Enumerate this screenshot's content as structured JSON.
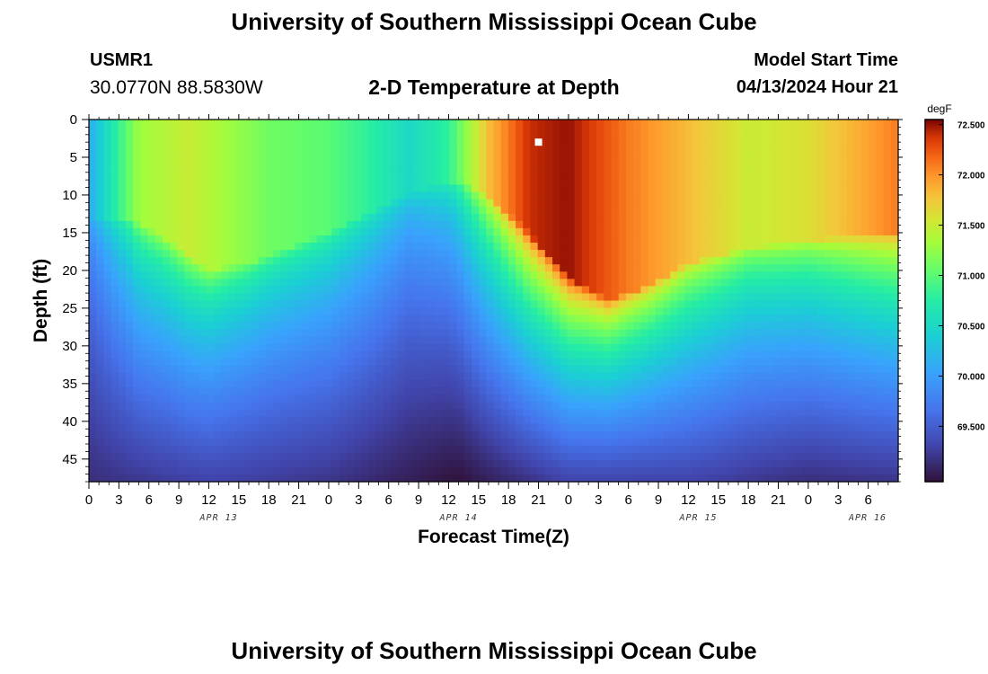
{
  "header": {
    "title": "University of Southern Mississippi Ocean Cube",
    "station_id": "USMR1",
    "station_coords": "30.0770N  88.5830W",
    "subtitle": "2-D Temperature at Depth",
    "model_start_label": "Model Start Time",
    "model_start_value": "04/13/2024 Hour 21"
  },
  "footer": {
    "title": "University of Southern Mississippi Ocean Cube"
  },
  "chart_data": {
    "type": "heatmap",
    "title": "2-D Temperature at Depth",
    "xlabel": "Forecast Time(Z)",
    "ylabel": "Depth (ft)",
    "x_range_hours": [
      0,
      81
    ],
    "y_range_ft": [
      0,
      48
    ],
    "x_ticks": [
      "0",
      "3",
      "6",
      "9",
      "12",
      "15",
      "18",
      "21",
      "0",
      "3",
      "6",
      "9",
      "12",
      "15",
      "18",
      "21",
      "0",
      "3",
      "6",
      "9",
      "12",
      "15",
      "18",
      "21",
      "0",
      "3",
      "6"
    ],
    "y_ticks": [
      0,
      5,
      10,
      15,
      20,
      25,
      30,
      35,
      40,
      45
    ],
    "date_labels": [
      {
        "label": "APR 13",
        "hour": 13
      },
      {
        "label": "APR 14",
        "hour": 37
      },
      {
        "label": "APR 15",
        "hour": 61
      },
      {
        "label": "APR 16",
        "hour": 85
      }
    ],
    "colorbar": {
      "unit": "degF",
      "min": 68.95,
      "max": 72.55,
      "ticks": [
        "72.500",
        "72.000",
        "71.500",
        "71.000",
        "70.500",
        "70.000",
        "69.500"
      ]
    },
    "annotations": [
      {
        "type": "marker",
        "hour": 45,
        "depth_ft": 3,
        "color": "#ffffff"
      }
    ],
    "thermocline_depth_ft": [
      {
        "hour": 0,
        "depth": 19
      },
      {
        "hour": 4,
        "depth": 19
      },
      {
        "hour": 8,
        "depth": 22
      },
      {
        "hour": 12,
        "depth": 26
      },
      {
        "hour": 16,
        "depth": 25
      },
      {
        "hour": 20,
        "depth": 23
      },
      {
        "hour": 24,
        "depth": 21
      },
      {
        "hour": 30,
        "depth": 17
      },
      {
        "hour": 34,
        "depth": 15
      },
      {
        "hour": 37,
        "depth": 14
      },
      {
        "hour": 40,
        "depth": 16
      },
      {
        "hour": 44,
        "depth": 21
      },
      {
        "hour": 48,
        "depth": 27
      },
      {
        "hour": 52,
        "depth": 30
      },
      {
        "hour": 56,
        "depth": 28
      },
      {
        "hour": 60,
        "depth": 25
      },
      {
        "hour": 66,
        "depth": 23
      },
      {
        "hour": 72,
        "depth": 22
      },
      {
        "hour": 81,
        "depth": 21
      }
    ],
    "surface_temp_degF": [
      {
        "hour": 0,
        "temp": 70.1
      },
      {
        "hour": 2,
        "temp": 70.6
      },
      {
        "hour": 5,
        "temp": 71.3
      },
      {
        "hour": 10,
        "temp": 71.5
      },
      {
        "hour": 18,
        "temp": 71.1
      },
      {
        "hour": 24,
        "temp": 71.0
      },
      {
        "hour": 28,
        "temp": 70.8
      },
      {
        "hour": 32,
        "temp": 70.5
      },
      {
        "hour": 36,
        "temp": 70.8
      },
      {
        "hour": 40,
        "temp": 71.8
      },
      {
        "hour": 44,
        "temp": 72.4
      },
      {
        "hour": 48,
        "temp": 72.5
      },
      {
        "hour": 54,
        "temp": 72.1
      },
      {
        "hour": 60,
        "temp": 71.8
      },
      {
        "hour": 66,
        "temp": 71.5
      },
      {
        "hour": 72,
        "temp": 71.6
      },
      {
        "hour": 81,
        "temp": 72.1
      }
    ],
    "bottom_temp_degF": [
      {
        "hour": 0,
        "temp": 69.15
      },
      {
        "hour": 12,
        "temp": 69.3
      },
      {
        "hour": 24,
        "temp": 69.2
      },
      {
        "hour": 37,
        "temp": 68.95
      },
      {
        "hour": 48,
        "temp": 69.3
      },
      {
        "hour": 60,
        "temp": 69.3
      },
      {
        "hour": 72,
        "temp": 69.15
      },
      {
        "hour": 81,
        "temp": 69.2
      }
    ]
  }
}
